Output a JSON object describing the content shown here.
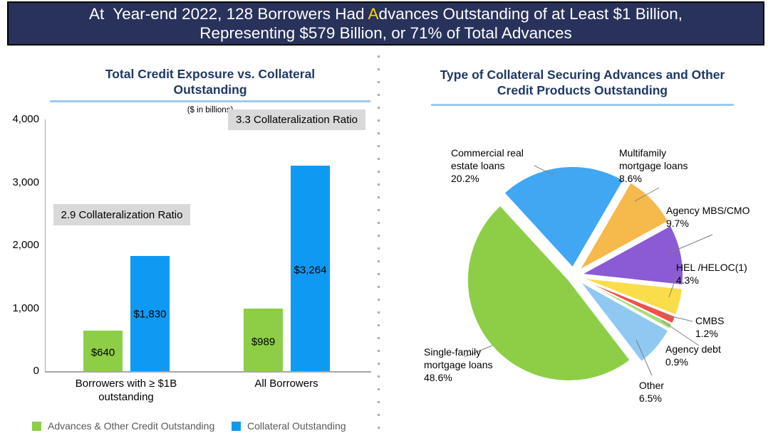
{
  "banner": {
    "line1_pre": "At  Year-end 2022, 128 Borrowers Had ",
    "line1_highlight": "A",
    "line1_post": "dvances Outstanding of at Least $1 Billion,",
    "line2": "Representing $579 Billion, or 71% of Total Advances",
    "bg_color": "#28325B",
    "text_color": "#FFFFFF",
    "highlight_color": "#FFD400"
  },
  "theme": {
    "title_color": "#1F3864",
    "rule_color": "#9DC9EF",
    "axis_color": "#A6A6A6",
    "annotation_bg": "#D9D9D9",
    "legend_text_color": "#595959",
    "leader_line_color": "#7F7F7F"
  },
  "chart_data": [
    {
      "type": "bar",
      "title": "Total Credit Exposure vs. Collateral\nOutstanding",
      "units_note": "($ in billions)",
      "ylim": [
        0,
        4000
      ],
      "yticks": [
        "4,000",
        "3,000",
        "2,000",
        "1,000",
        "0"
      ],
      "grid": false,
      "legend_position": "bottom",
      "categories": [
        "Borrowers with ≥ $1B\noutstanding",
        "All Borrowers"
      ],
      "series": [
        {
          "name": "Advances & Other Credit Outstanding",
          "color": "#8DCE46",
          "values": [
            640,
            989
          ],
          "value_labels": [
            "$640",
            "$989"
          ]
        },
        {
          "name": "Collateral Outstanding",
          "color": "#0E9AF2",
          "values": [
            1830,
            3264
          ],
          "value_labels": [
            "$1,830",
            "$3,264"
          ]
        }
      ],
      "annotations": [
        {
          "text": "2.9 Collateralization Ratio"
        },
        {
          "text": "3.3 Collateralization Ratio"
        }
      ]
    },
    {
      "type": "pie",
      "title": "Type of Collateral Securing Advances and Other\nCredit Products Outstanding",
      "slices": [
        {
          "label": "Commercial real estate loans",
          "pct": 20.2,
          "callout": "Commercial real\nestate loans\n20.2%",
          "color": "#41A7F3"
        },
        {
          "label": "Multifamily mortgage loans",
          "pct": 8.6,
          "callout": "Multifamily\nmortgage loans\n8.6%",
          "color": "#F6B94B"
        },
        {
          "label": "Agency MBS/CMO",
          "pct": 9.7,
          "callout": "Agency MBS/CMO\n9.7%",
          "color": "#8A5BD4"
        },
        {
          "label": "HEL /HELOC(1)",
          "pct": 4.3,
          "callout": "HEL /HELOC(1)\n4.3%",
          "color": "#FBDC4B"
        },
        {
          "label": "CMBS",
          "pct": 1.2,
          "callout": "CMBS\n1.2%",
          "color": "#F1504A"
        },
        {
          "label": "Agency debt",
          "pct": 0.9,
          "callout": "Agency debt\n0.9%",
          "color": "#A8DC80"
        },
        {
          "label": "Other",
          "pct": 6.5,
          "callout": "Other\n6.5%",
          "color": "#8FC9F2"
        },
        {
          "label": "Single-family mortgage loans",
          "pct": 48.6,
          "callout": "Single-family\nmortgage loans\n48.6%",
          "color": "#8DCE46"
        }
      ]
    }
  ]
}
